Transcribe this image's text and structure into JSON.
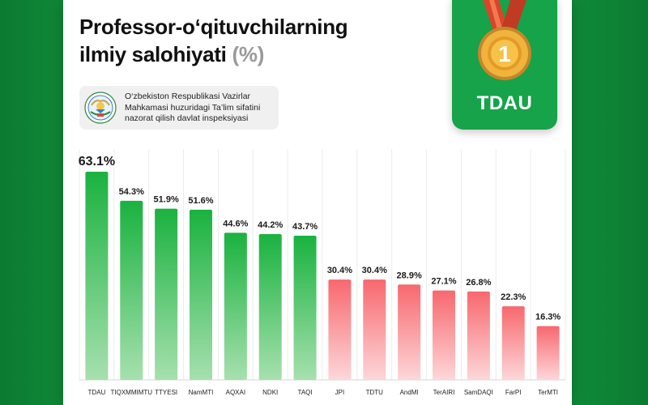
{
  "header": {
    "title_line1": "Professor-o‘qituvchilarning",
    "title_line2": "ilmiy salohiyati",
    "title_unit": "(%)"
  },
  "inspection": {
    "line1": "O‘zbekiston Respublikasi Vazirlar",
    "line2": "Mahkamasi huzuridagi Ta’lim sifatini",
    "line3": "nazorat qilish davlat inspeksiyasi",
    "emblem_icon": "state-emblem-icon"
  },
  "medal": {
    "rank": "1",
    "label": "TDAU",
    "icon": "gold-medal-icon"
  },
  "colors": {
    "green_top": "#1ab23f",
    "green_bottom": "#a6e0ae",
    "red_top": "#f7686e",
    "red_bottom": "#fdd7d9",
    "background": "#15a544",
    "medal_gold": "#e6a12c",
    "ribbon": "#d9452b"
  },
  "chart_data": {
    "type": "bar",
    "title": "Professor-o‘qituvchilarning ilmiy salohiyati (%)",
    "categories": [
      "TDAU",
      "TIQXMMIMTU",
      "TTYESI",
      "NamMTI",
      "AQXAI",
      "NDKI",
      "TAQI",
      "JPI",
      "TDTU",
      "AndMI",
      "TerAIRI",
      "SamDAQI",
      "FarPI",
      "TerMTI"
    ],
    "values": [
      63.1,
      54.3,
      51.9,
      51.6,
      44.6,
      44.2,
      43.7,
      30.4,
      30.4,
      28.9,
      27.1,
      26.8,
      22.3,
      16.3
    ],
    "labels": [
      "63.1%",
      "54.3%",
      "51.9%",
      "51.6%",
      "44.6%",
      "44.2%",
      "43.7%",
      "30.4%",
      "30.4%",
      "28.9%",
      "27.1%",
      "26.8%",
      "22.3%",
      "16.3%"
    ],
    "groups": [
      "green",
      "green",
      "green",
      "green",
      "green",
      "green",
      "green",
      "red",
      "red",
      "red",
      "red",
      "red",
      "red",
      "red"
    ],
    "ylim": [
      0,
      63.1
    ],
    "xlabel": "",
    "ylabel": "",
    "grid": true
  }
}
